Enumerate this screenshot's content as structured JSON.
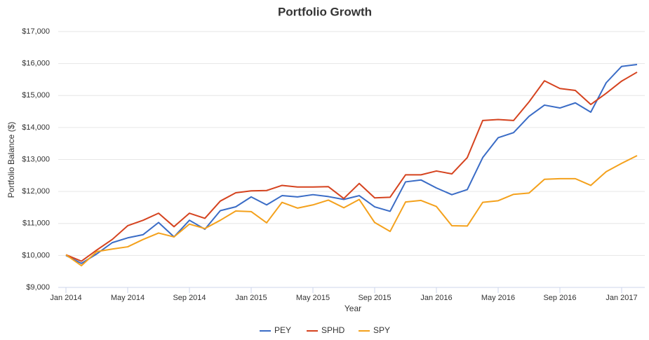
{
  "chart_data": {
    "type": "line",
    "title": "Portfolio Growth",
    "x_label": "Year",
    "y_label": "Portfolio Balance ($)",
    "categories": [
      "Jan 2014",
      null,
      null,
      null,
      "May 2014",
      null,
      null,
      null,
      "Sep 2014",
      null,
      null,
      null,
      "Jan 2015",
      null,
      null,
      null,
      "May 2015",
      null,
      null,
      null,
      "Sep 2015",
      null,
      null,
      null,
      "Jan 2016",
      null,
      null,
      null,
      "May 2016",
      null,
      null,
      null,
      "Sep 2016",
      null,
      null,
      null,
      "Jan 2017",
      null
    ],
    "series": [
      {
        "name": "PEY",
        "color": "#3a6cc6",
        "values": [
          10000,
          9750,
          10050,
          10400,
          10550,
          10650,
          11030,
          10580,
          11100,
          10820,
          11400,
          11520,
          11830,
          11580,
          11870,
          11830,
          11900,
          11840,
          11750,
          11870,
          11520,
          11380,
          12300,
          12360,
          12110,
          11900,
          12060,
          13060,
          13680,
          13840,
          14350,
          14700,
          14610,
          14770,
          14480,
          15400,
          15910,
          15970
        ]
      },
      {
        "name": "SPHD",
        "color": "#d5431f",
        "values": [
          10020,
          9820,
          10170,
          10500,
          10930,
          11100,
          11320,
          10900,
          11320,
          11160,
          11700,
          11960,
          12020,
          12030,
          12190,
          12140,
          12140,
          12150,
          11780,
          12250,
          11800,
          11820,
          12520,
          12520,
          12640,
          12550,
          13060,
          14220,
          14250,
          14220,
          14800,
          15460,
          15220,
          15160,
          14720,
          15070,
          15450,
          15730
        ]
      },
      {
        "name": "SPY",
        "color": "#f4a11c",
        "values": [
          10020,
          9680,
          10120,
          10200,
          10270,
          10500,
          10700,
          10580,
          10980,
          10840,
          11100,
          11390,
          11370,
          11020,
          11660,
          11480,
          11580,
          11730,
          11490,
          11750,
          11030,
          10750,
          11670,
          11720,
          11530,
          10930,
          10920,
          11660,
          11710,
          11910,
          11950,
          12380,
          12400,
          12400,
          12190,
          12620,
          12880,
          13120
        ]
      }
    ],
    "ylim": [
      9000,
      17000
    ],
    "yticks": [
      {
        "value": 9000,
        "label": "$9,000"
      },
      {
        "value": 10000,
        "label": "$10,000"
      },
      {
        "value": 11000,
        "label": "$11,000"
      },
      {
        "value": 12000,
        "label": "$12,000"
      },
      {
        "value": 13000,
        "label": "$13,000"
      },
      {
        "value": 14000,
        "label": "$14,000"
      },
      {
        "value": 15000,
        "label": "$15,000"
      },
      {
        "value": 16000,
        "label": "$16,000"
      },
      {
        "value": 17000,
        "label": "$17,000"
      }
    ],
    "grid": true,
    "legend": "bottom"
  }
}
